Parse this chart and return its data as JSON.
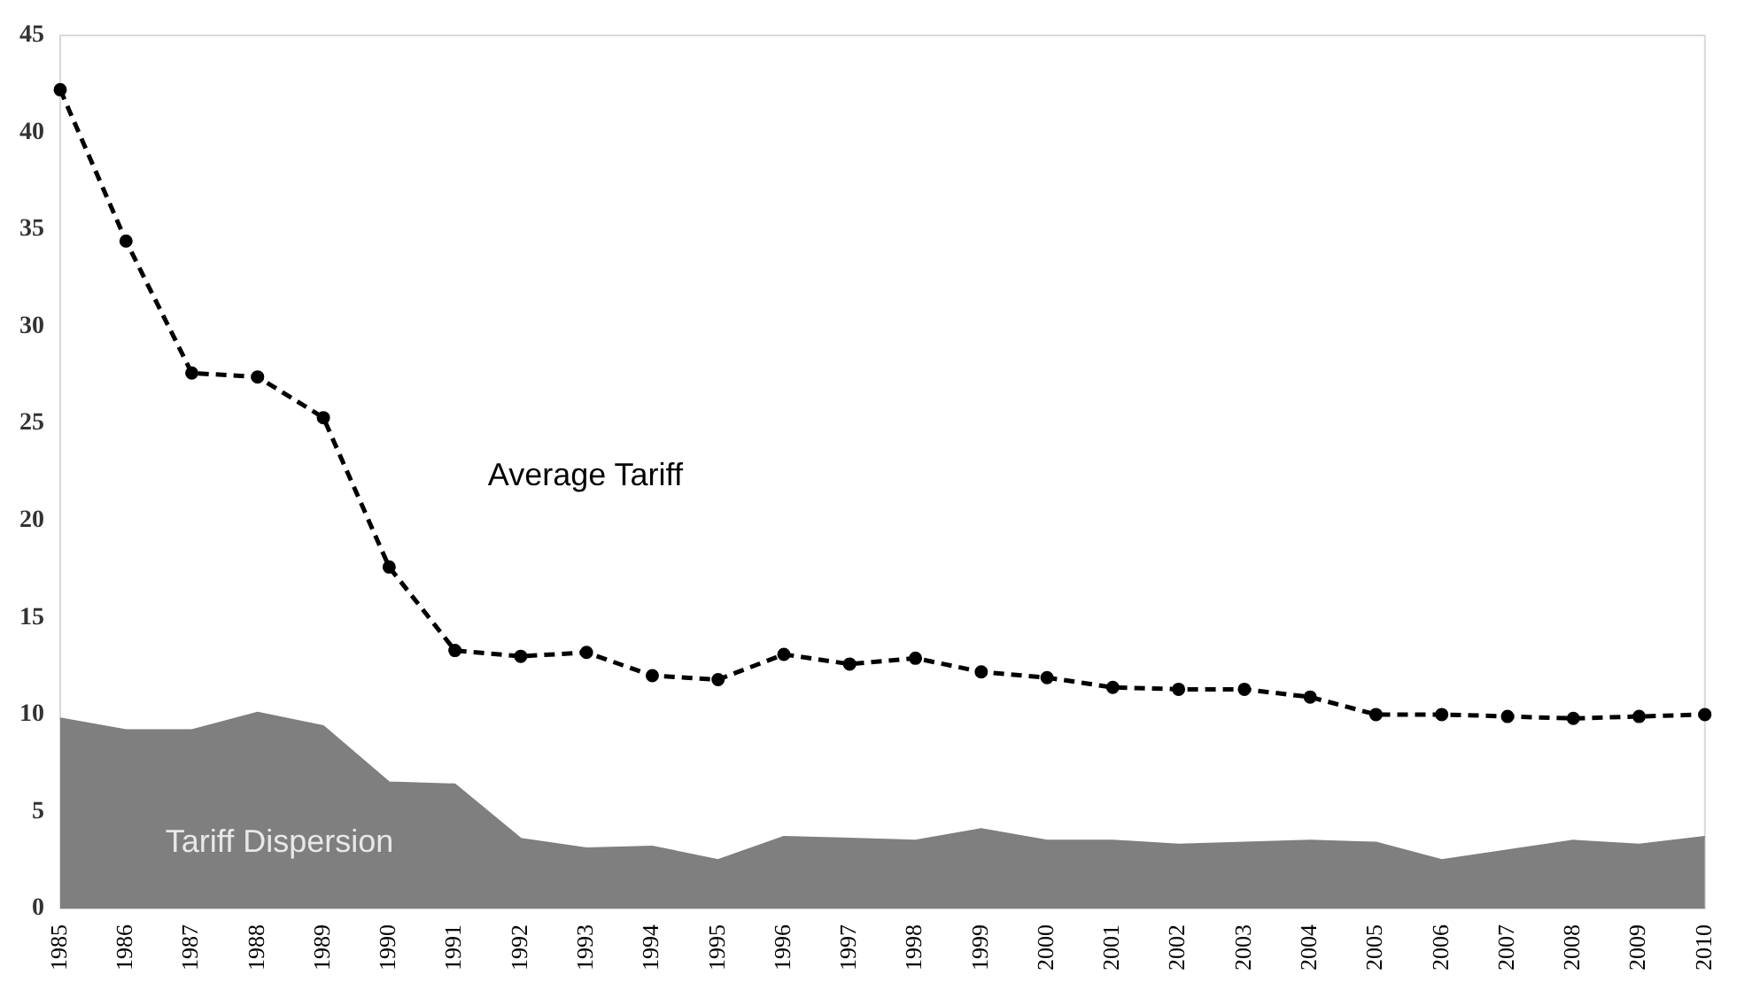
{
  "chart_data": {
    "type": "line",
    "categories": [
      "1985",
      "1986",
      "1987",
      "1988",
      "1989",
      "1990",
      "1991",
      "1992",
      "1993",
      "1994",
      "1995",
      "1996",
      "1997",
      "1998",
      "1999",
      "2000",
      "2001",
      "2002",
      "2003",
      "2004",
      "2005",
      "2006",
      "2007",
      "2008",
      "2009",
      "2010"
    ],
    "series": [
      {
        "name": "Tariff Dispersion",
        "type": "area",
        "color": "#7f7f7f",
        "values": [
          9.8,
          9.2,
          9.2,
          10.1,
          9.4,
          6.5,
          6.4,
          3.6,
          3.1,
          3.2,
          2.5,
          3.7,
          3.6,
          3.5,
          4.1,
          3.5,
          3.5,
          3.3,
          3.4,
          3.5,
          3.4,
          2.5,
          3.0,
          3.5,
          3.3,
          3.7
        ]
      },
      {
        "name": "Average Tariff",
        "type": "line",
        "color": "#000000",
        "marker": "circle",
        "line_style": "dashed",
        "values": [
          42.2,
          34.4,
          27.6,
          27.4,
          25.3,
          17.6,
          13.3,
          13.0,
          13.2,
          12.0,
          11.8,
          13.1,
          12.6,
          12.9,
          12.2,
          11.9,
          11.4,
          11.3,
          11.3,
          10.9,
          10.0,
          10.0,
          9.9,
          9.8,
          9.9,
          10.0
        ]
      }
    ],
    "ylim": [
      0,
      45
    ],
    "yticks": [
      0,
      5,
      10,
      15,
      20,
      25,
      30,
      35,
      40,
      45
    ],
    "grid": false,
    "legend": false
  }
}
